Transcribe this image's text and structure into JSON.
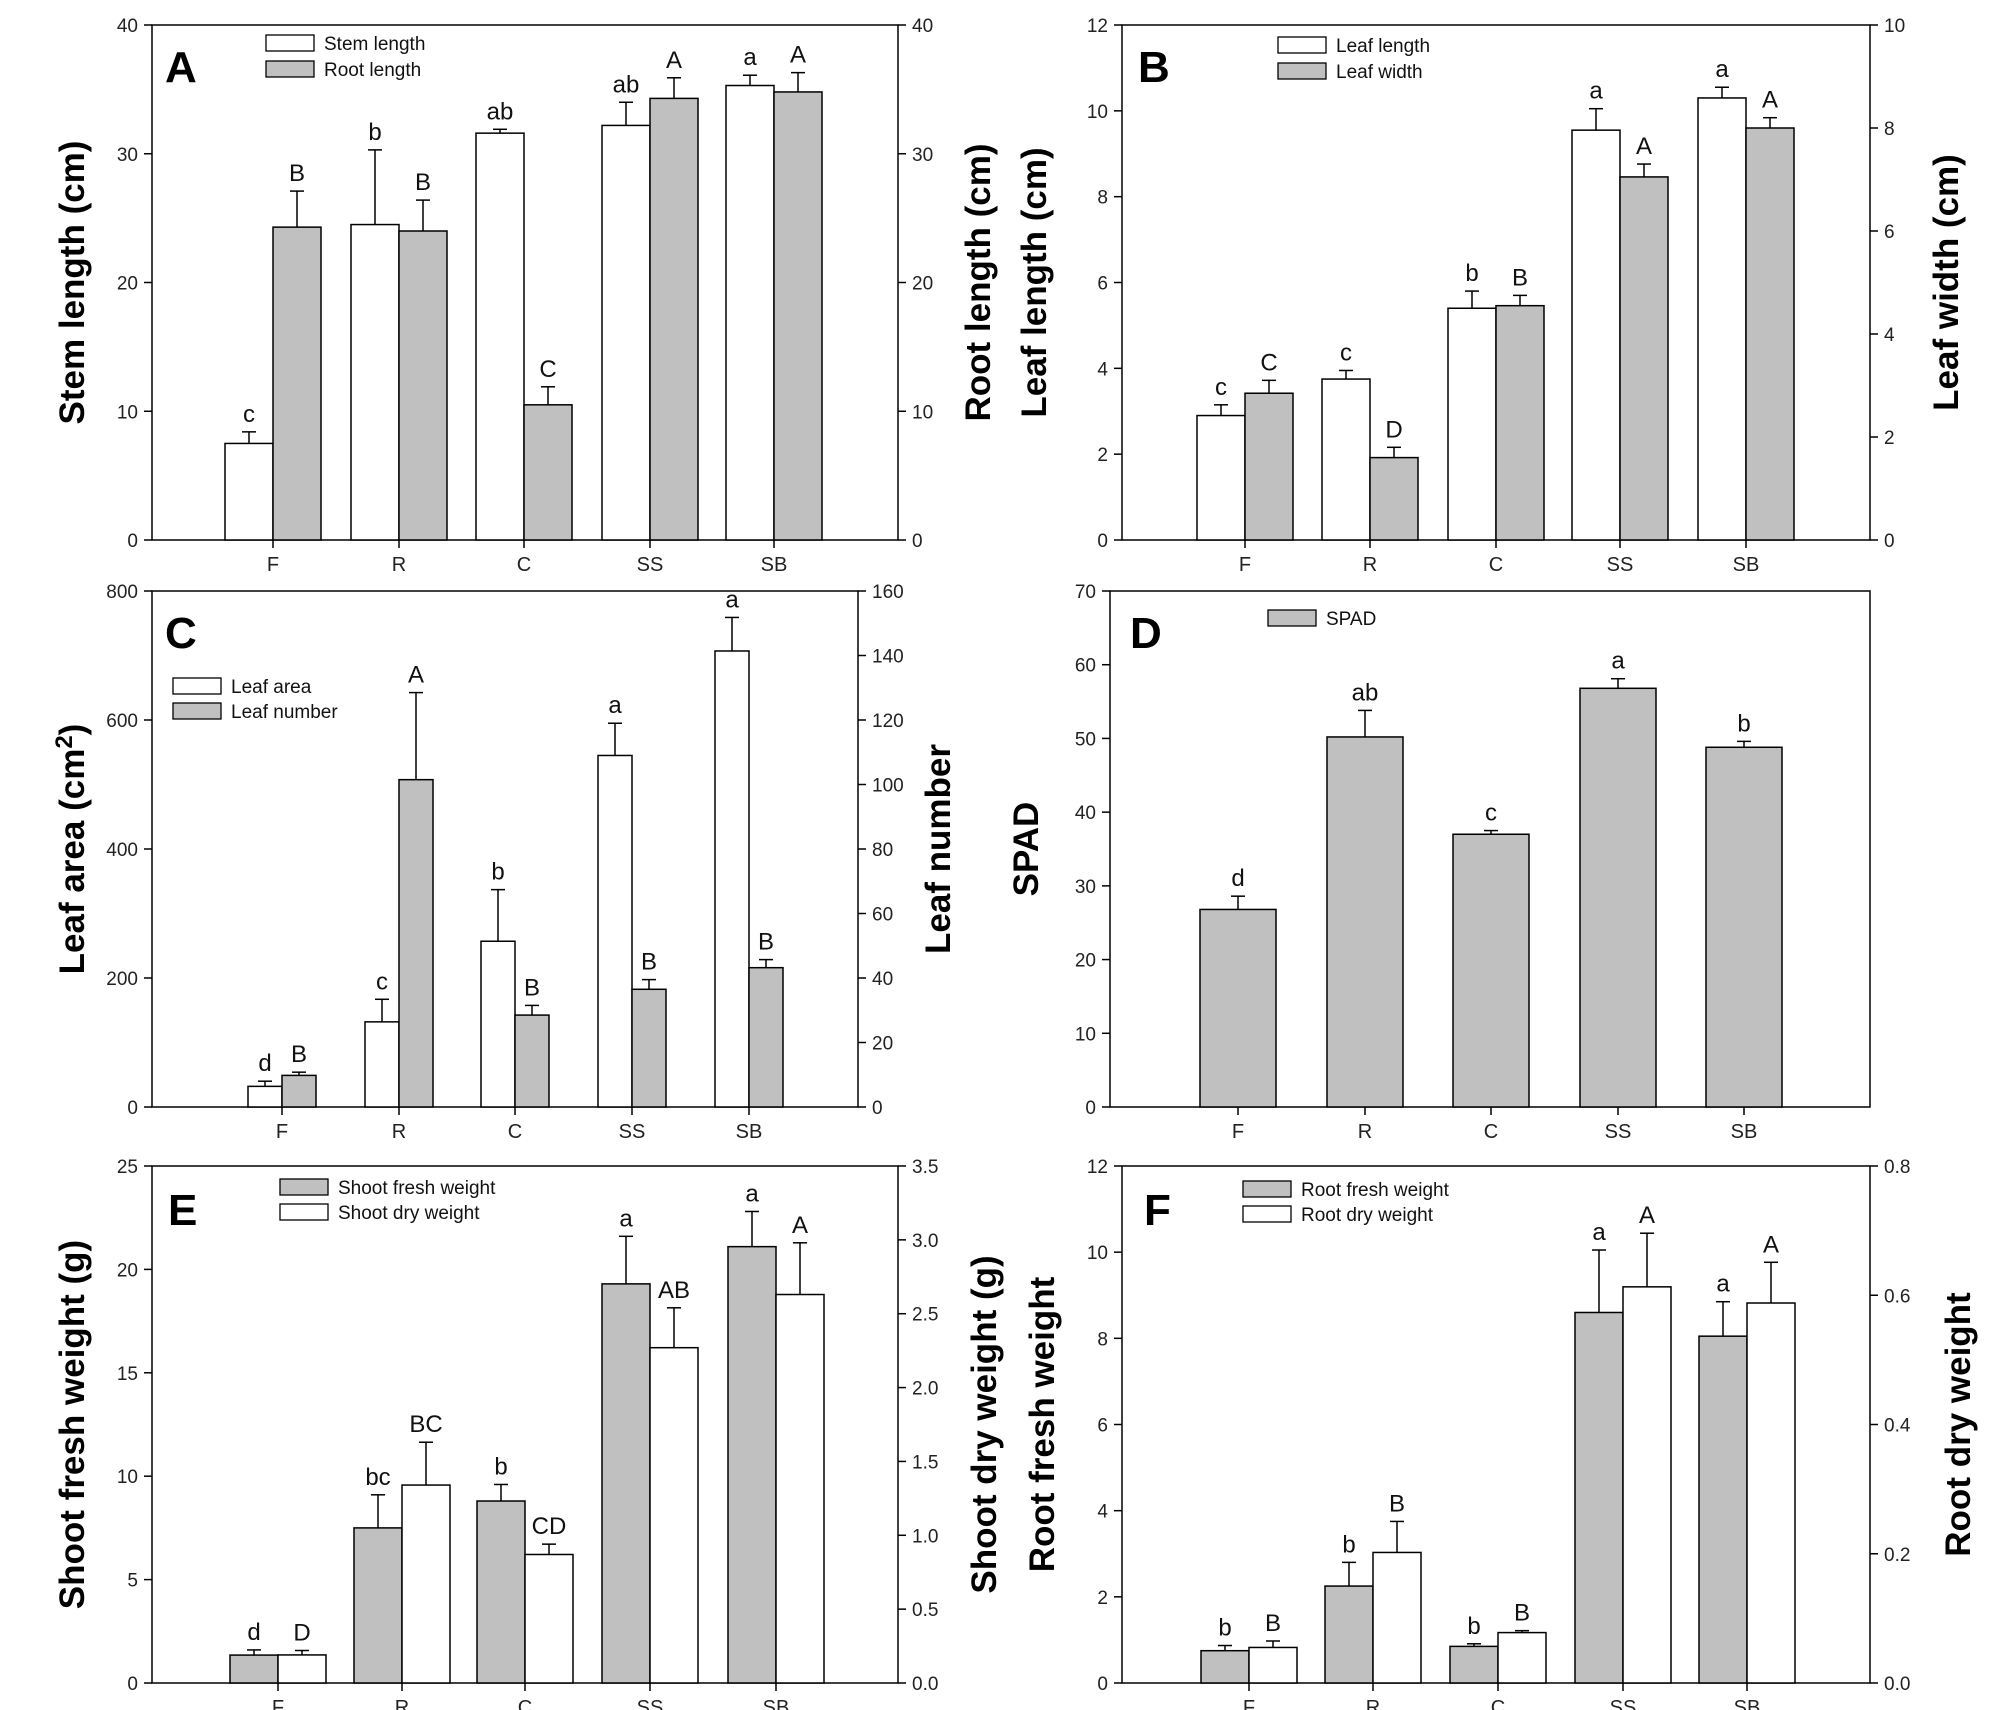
{
  "colors": {
    "gray_fill": "#c0c0c0",
    "white_fill": "#ffffff",
    "stroke": "#000000"
  },
  "chart_data": [
    {
      "panel": "A",
      "type": "bar",
      "categories": [
        "F",
        "R",
        "C",
        "SS",
        "SB"
      ],
      "left_axis": {
        "label": "Stem length (cm)",
        "ylim": [
          0,
          40
        ],
        "ticks": [
          0,
          10,
          20,
          30,
          40
        ]
      },
      "right_axis": {
        "label": "Root length (cm)",
        "ylim": [
          0,
          40
        ],
        "ticks": [
          0,
          10,
          20,
          30,
          40
        ]
      },
      "legend_position": "top-left",
      "series": [
        {
          "name": "Stem length",
          "fill": "white",
          "axis": "left",
          "values": [
            7.5,
            24.5,
            31.6,
            32.2,
            35.3
          ],
          "errors": [
            0.9,
            5.8,
            0.3,
            1.8,
            0.8
          ],
          "letters": [
            "c",
            "b",
            "ab",
            "ab",
            "a"
          ]
        },
        {
          "name": "Root length",
          "fill": "gray",
          "axis": "right",
          "values": [
            24.3,
            24.0,
            10.5,
            34.3,
            34.8
          ],
          "errors": [
            2.8,
            2.4,
            1.4,
            1.6,
            1.5
          ],
          "letters": [
            "B",
            "B",
            "C",
            "A",
            "A"
          ]
        }
      ]
    },
    {
      "panel": "B",
      "type": "bar",
      "categories": [
        "F",
        "R",
        "C",
        "SS",
        "SB"
      ],
      "left_axis": {
        "label": "Leaf length (cm)",
        "ylim": [
          0,
          12
        ],
        "ticks": [
          0,
          2,
          4,
          6,
          8,
          10,
          12
        ]
      },
      "right_axis": {
        "label": "Leaf width (cm)",
        "ylim": [
          0,
          10
        ],
        "ticks": [
          0,
          2,
          4,
          6,
          8,
          10
        ]
      },
      "legend_position": "top-left",
      "series": [
        {
          "name": "Leaf length",
          "fill": "white",
          "axis": "left",
          "values": [
            2.9,
            3.75,
            5.4,
            9.55,
            10.3
          ],
          "errors": [
            0.25,
            0.2,
            0.4,
            0.5,
            0.25
          ],
          "letters": [
            "c",
            "c",
            "b",
            "a",
            "a"
          ]
        },
        {
          "name": "Leaf width",
          "fill": "gray",
          "axis": "right",
          "values": [
            2.85,
            1.6,
            4.55,
            7.05,
            8.0
          ],
          "errors": [
            0.25,
            0.2,
            0.2,
            0.25,
            0.2
          ],
          "letters": [
            "C",
            "D",
            "B",
            "A",
            "A"
          ]
        }
      ]
    },
    {
      "panel": "C",
      "type": "bar",
      "categories": [
        "F",
        "R",
        "C",
        "SS",
        "SB"
      ],
      "left_axis": {
        "label": "Leaf area (cm",
        "label_sup": "2",
        "label_end": ")",
        "ylim": [
          0,
          800
        ],
        "ticks": [
          0,
          200,
          400,
          600,
          800
        ]
      },
      "right_axis": {
        "label": "Leaf number",
        "ylim": [
          0,
          160
        ],
        "ticks": [
          0,
          20,
          40,
          60,
          80,
          100,
          120,
          140,
          160
        ]
      },
      "legend_position": "upper-left",
      "series": [
        {
          "name": "Leaf area",
          "fill": "white",
          "axis": "left",
          "values": [
            32,
            132,
            257,
            545,
            707
          ],
          "errors": [
            8,
            35,
            80,
            50,
            52
          ],
          "letters": [
            "d",
            "c",
            "b",
            "a",
            "a"
          ]
        },
        {
          "name": "Leaf number",
          "fill": "gray",
          "axis": "right",
          "values": [
            9.8,
            101.5,
            28.5,
            36.5,
            43.2
          ],
          "errors": [
            1,
            27,
            3,
            3,
            2.5
          ],
          "letters": [
            "B",
            "A",
            "B",
            "B",
            "B"
          ]
        }
      ]
    },
    {
      "panel": "D",
      "type": "bar",
      "categories": [
        "F",
        "R",
        "C",
        "SS",
        "SB"
      ],
      "left_axis": {
        "label": "SPAD",
        "ylim": [
          0,
          70
        ],
        "ticks": [
          0,
          10,
          20,
          30,
          40,
          50,
          60,
          70
        ]
      },
      "legend_position": "top-left",
      "series": [
        {
          "name": "SPAD",
          "fill": "gray",
          "axis": "left",
          "values": [
            26.8,
            50.2,
            37.0,
            56.8,
            48.8
          ],
          "errors": [
            1.8,
            3.6,
            0.5,
            1.3,
            0.8
          ],
          "letters": [
            "d",
            "ab",
            "c",
            "a",
            "b"
          ]
        }
      ]
    },
    {
      "panel": "E",
      "type": "bar",
      "categories": [
        "F",
        "R",
        "C",
        "SS",
        "SB"
      ],
      "left_axis": {
        "label": "Shoot fresh weight (g)",
        "ylim": [
          0,
          25
        ],
        "ticks": [
          0,
          5,
          10,
          15,
          20,
          25
        ]
      },
      "right_axis": {
        "label": "Shoot dry weight (g)",
        "ylim": [
          0,
          3.5
        ],
        "ticks": [
          "0.0",
          "0.5",
          "1.0",
          "1.5",
          "2.0",
          "2.5",
          "3.0",
          "3.5"
        ]
      },
      "legend_position": "top-left",
      "series": [
        {
          "name": "Shoot fresh weight",
          "fill": "gray",
          "axis": "left",
          "values": [
            1.35,
            7.5,
            8.8,
            19.3,
            21.1
          ],
          "errors": [
            0.25,
            1.6,
            0.8,
            2.3,
            1.7
          ],
          "letters": [
            "d",
            "bc",
            "b",
            "a",
            "a"
          ]
        },
        {
          "name": "Shoot dry weight",
          "fill": "white",
          "axis": "right",
          "values": [
            0.19,
            1.34,
            0.87,
            2.27,
            2.63
          ],
          "errors": [
            0.03,
            0.29,
            0.07,
            0.27,
            0.35
          ],
          "letters": [
            "D",
            "BC",
            "CD",
            "AB",
            "A"
          ]
        }
      ]
    },
    {
      "panel": "F",
      "type": "bar",
      "categories": [
        "F",
        "R",
        "C",
        "SS",
        "SB"
      ],
      "left_axis": {
        "label": "Root fresh weight",
        "ylim": [
          0,
          12
        ],
        "ticks": [
          0,
          2,
          4,
          6,
          8,
          10,
          12
        ]
      },
      "right_axis": {
        "label": "Root dry weight",
        "ylim": [
          0,
          0.8
        ],
        "ticks": [
          "0.0",
          "0.2",
          "0.4",
          "0.6",
          "0.8"
        ]
      },
      "legend_position": "top-left",
      "series": [
        {
          "name": "Root fresh weight",
          "fill": "gray",
          "axis": "left",
          "values": [
            0.75,
            2.25,
            0.85,
            8.6,
            8.05
          ],
          "errors": [
            0.12,
            0.55,
            0.06,
            1.45,
            0.8
          ],
          "letters": [
            "b",
            "b",
            "b",
            "a",
            "a"
          ]
        },
        {
          "name": "Root dry weight",
          "fill": "white",
          "axis": "right",
          "values": [
            0.055,
            0.202,
            0.078,
            0.613,
            0.588
          ],
          "errors": [
            0.01,
            0.048,
            0.003,
            0.083,
            0.063
          ],
          "letters": [
            "B",
            "B",
            "B",
            "A",
            "A"
          ]
        }
      ]
    }
  ]
}
